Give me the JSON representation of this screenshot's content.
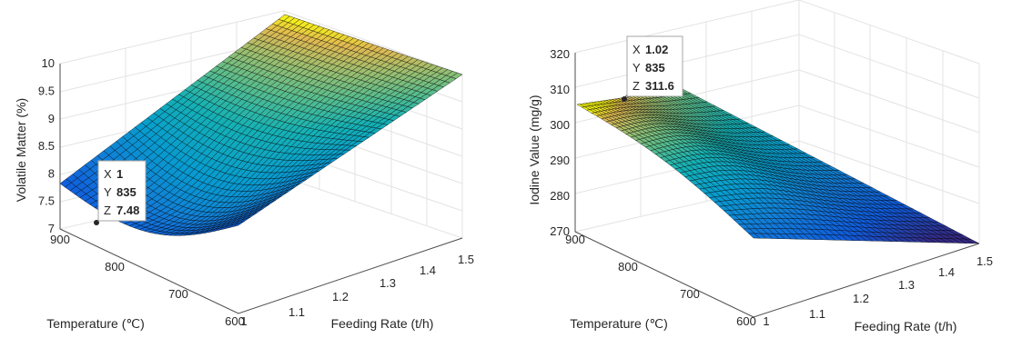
{
  "colors": {
    "tip_value": "#0c8ce9",
    "colormap": "parula",
    "mesh_edge": "#000000"
  },
  "chart_data": [
    {
      "type": "surface",
      "xlabel": "Feeding Rate (t/h)",
      "ylabel": "Temperature (℃)",
      "zlabel": "Volatile Matter (%)",
      "x_ticks": [
        "1",
        "1.1",
        "1.2",
        "1.3",
        "1.4",
        "1.5"
      ],
      "y_ticks": [
        "600",
        "700",
        "800",
        "900"
      ],
      "z_ticks": [
        "7",
        "7.5",
        "8",
        "8.5",
        "9",
        "9.5",
        "10"
      ],
      "xlim": [
        1,
        1.5
      ],
      "ylim": [
        600,
        900
      ],
      "zlim": [
        7,
        10.2
      ],
      "grid": true,
      "surface_corners_z": {
        "x1_y900": 7.85,
        "x1_y835": 7.48,
        "x1_y600": 10.3,
        "x15_y600": 9.8,
        "x15_y900": 7.9
      },
      "datatip": {
        "x_key": "X",
        "x_value": "1",
        "y_key": "Y",
        "y_value": "835",
        "z_key": "Z",
        "z_value": "7.48"
      }
    },
    {
      "type": "surface",
      "xlabel": "Feeding Rate (t/h)",
      "ylabel": "Temperature (℃)",
      "zlabel": "Iodine Value (mg/g)",
      "x_ticks": [
        "1",
        "1.1",
        "1.2",
        "1.3",
        "1.4",
        "1.5"
      ],
      "y_ticks": [
        "600",
        "700",
        "800",
        "900"
      ],
      "z_ticks": [
        "270",
        "280",
        "290",
        "300",
        "310",
        "320"
      ],
      "xlim": [
        1,
        1.5
      ],
      "ylim": [
        600,
        900
      ],
      "zlim": [
        270,
        322
      ],
      "grid": true,
      "surface_corners_z": {
        "x1_y900": 306,
        "x1_y835": 311.6,
        "x1_y600": 302,
        "x15_y600": 271,
        "x15_y900": 285
      },
      "datatip": {
        "x_key": "X",
        "x_value": "1.02",
        "y_key": "Y",
        "y_value": "835",
        "z_key": "Z",
        "z_value": "311.6"
      }
    }
  ]
}
